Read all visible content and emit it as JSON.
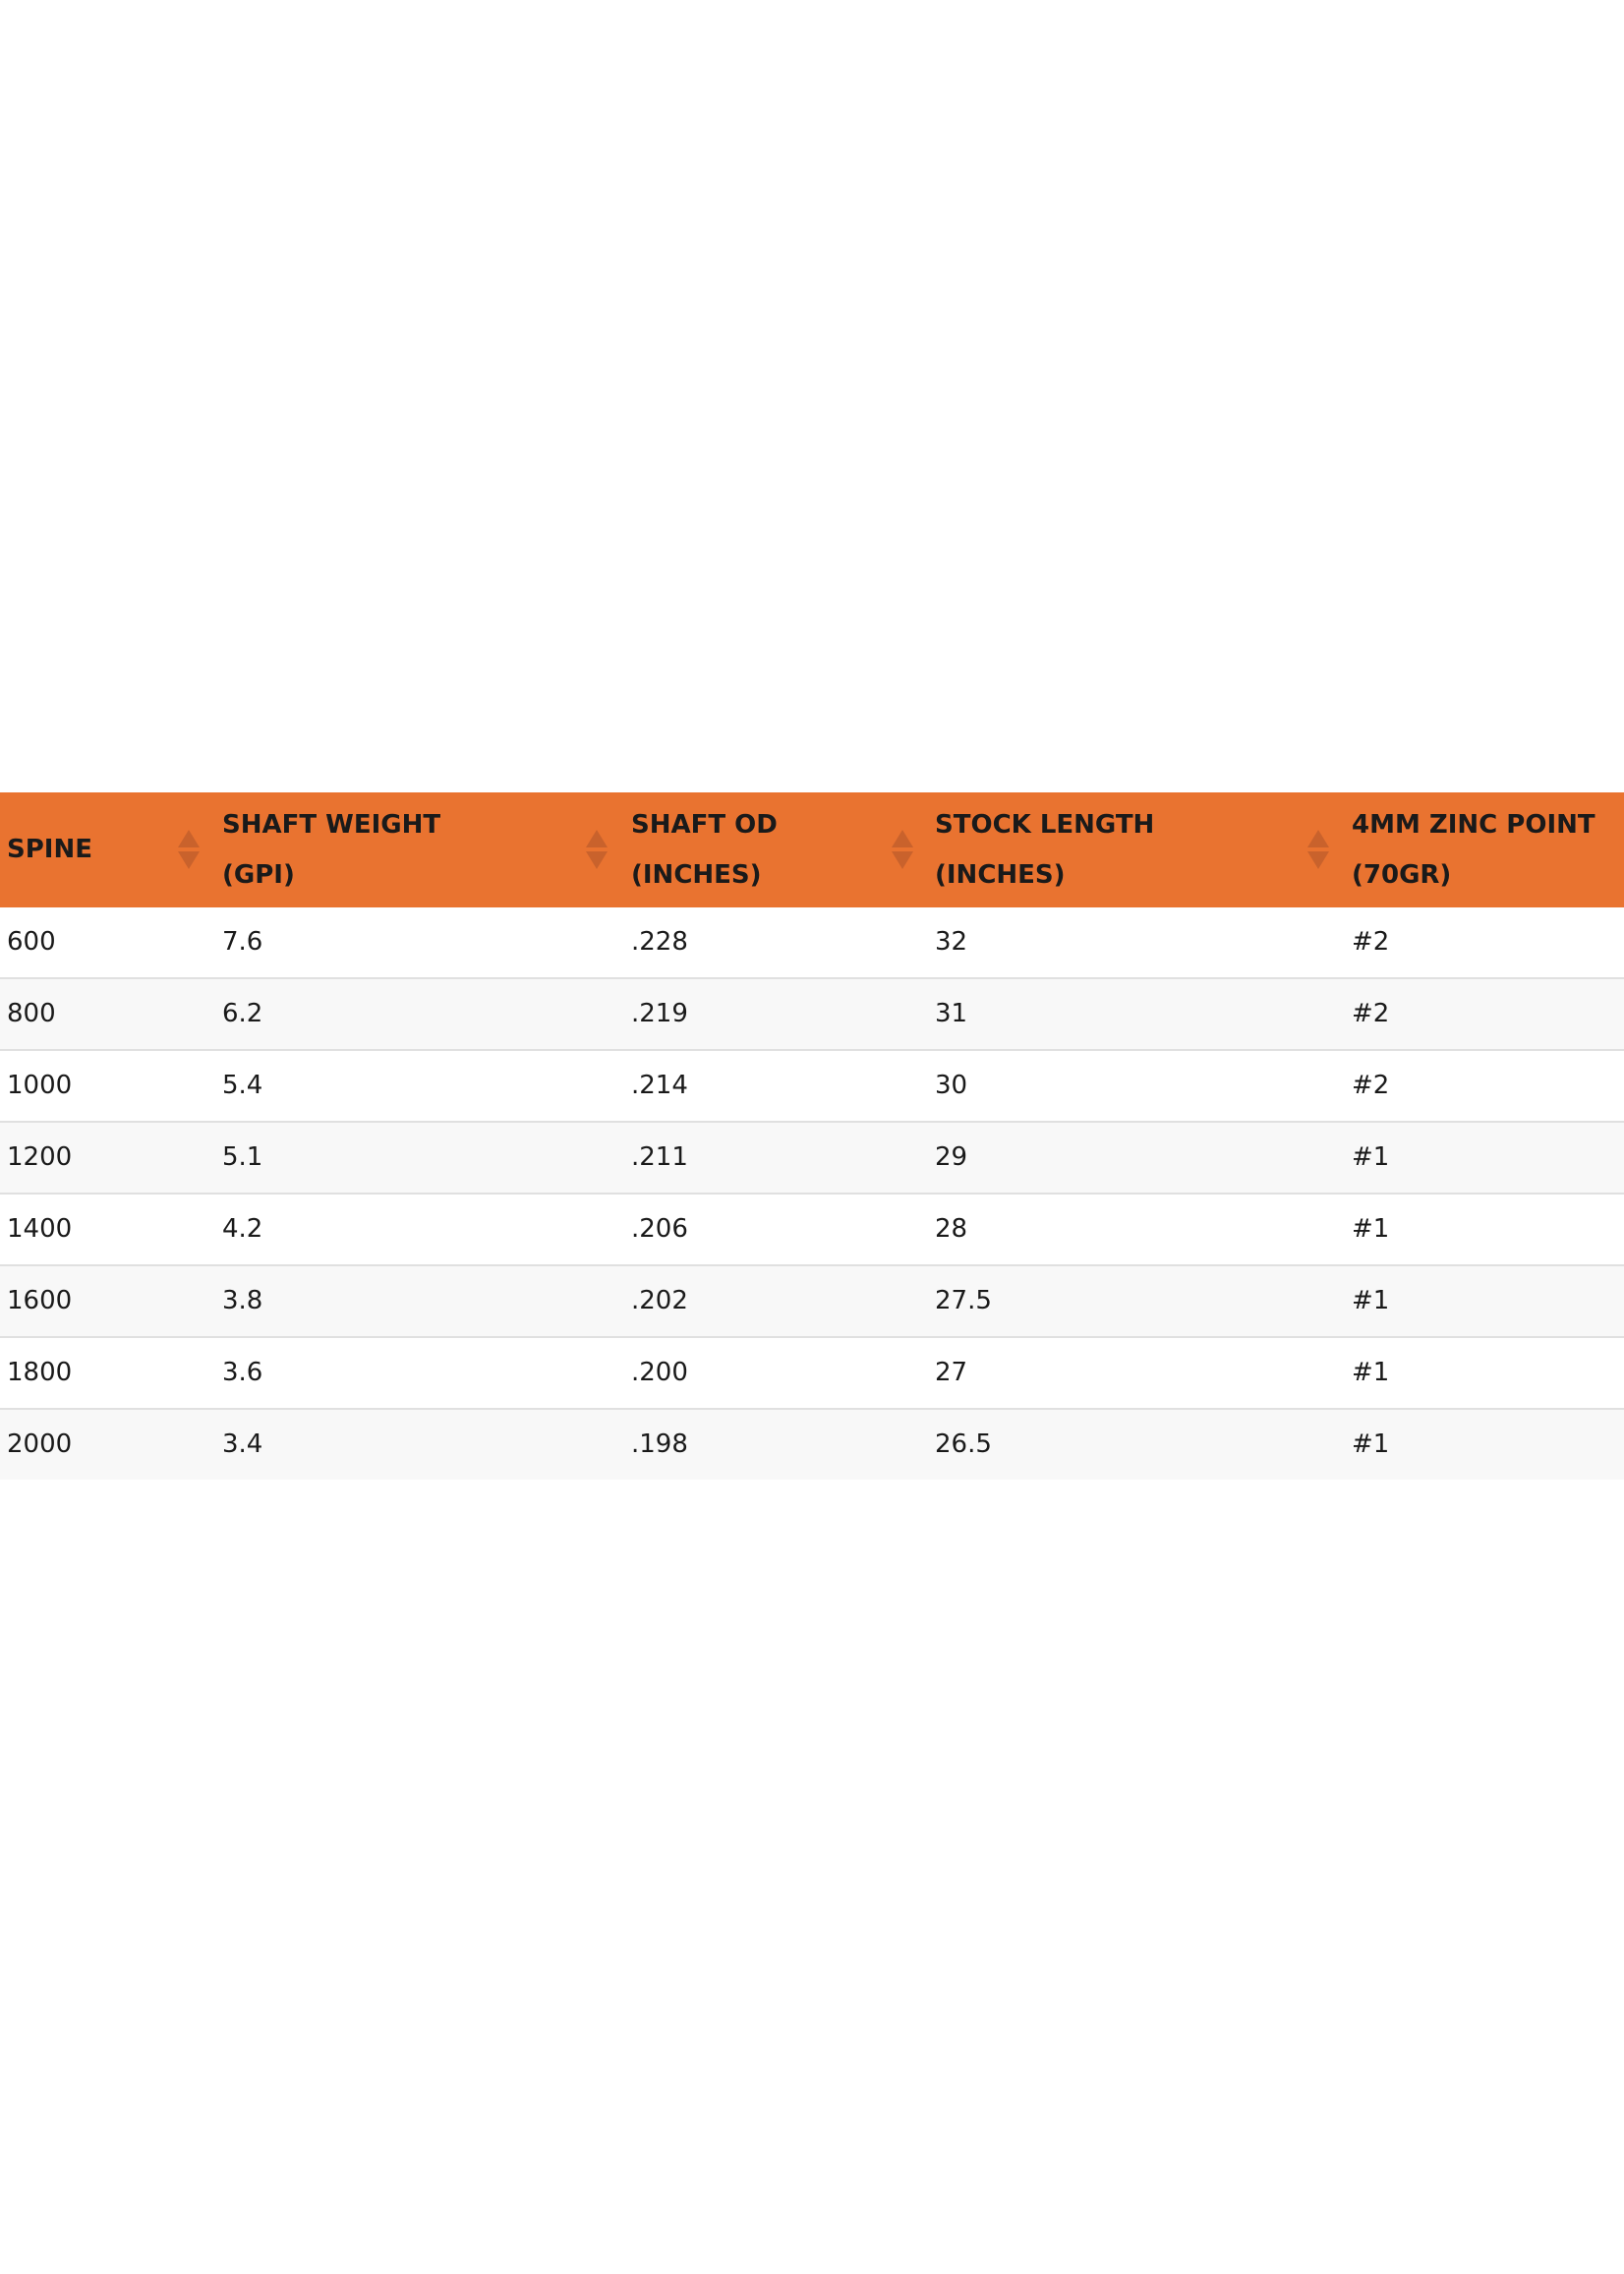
{
  "table": {
    "header_color": "#e97330",
    "columns": [
      {
        "line1": "SPINE",
        "line2": ""
      },
      {
        "line1": "SHAFT WEIGHT",
        "line2": "(GPI)"
      },
      {
        "line1": "SHAFT OD",
        "line2": "(INCHES)"
      },
      {
        "line1": "STOCK LENGTH",
        "line2": "(INCHES)"
      },
      {
        "line1": "4MM ZINC POINT",
        "line2": "(70GR)"
      }
    ],
    "rows": [
      [
        "600",
        "7.6",
        ".228",
        "32",
        "#2"
      ],
      [
        "800",
        "6.2",
        ".219",
        "31",
        "#2"
      ],
      [
        "1000",
        "5.4",
        ".214",
        "30",
        "#2"
      ],
      [
        "1200",
        "5.1",
        ".211",
        "29",
        "#1"
      ],
      [
        "1400",
        "4.2",
        ".206",
        "28",
        "#1"
      ],
      [
        "1600",
        "3.8",
        ".202",
        "27.5",
        "#1"
      ],
      [
        "1800",
        "3.6",
        ".200",
        "27",
        "#1"
      ],
      [
        "2000",
        "3.4",
        ".198",
        "26.5",
        "#1"
      ]
    ]
  }
}
